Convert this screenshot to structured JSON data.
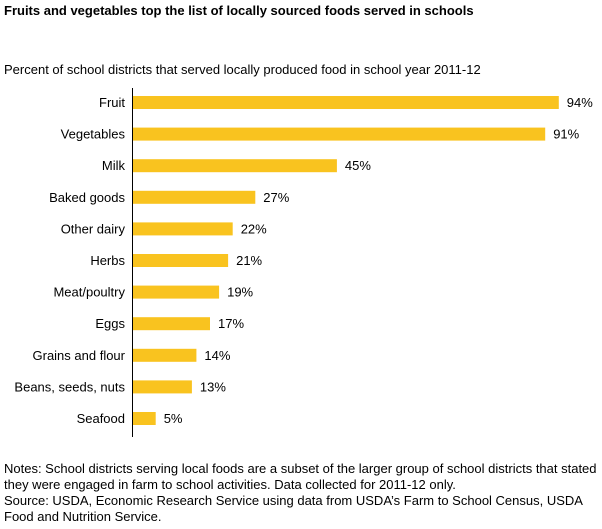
{
  "title": "Fruits and vegetables top the list of locally sourced foods served in schools",
  "subtitle": "Percent of school districts that served locally produced food in school year 2011-12",
  "notes": "Notes: School districts serving local foods are a subset of the larger group of school districts that stated they were engaged in farm to school activities. Data collected for 2011-12 only.",
  "source": "Source: USDA, Economic Research Service using data from USDA’s Farm to School Census, USDA Food and Nutrition Service.",
  "colors": {
    "bar": "#F9C31F",
    "axis": "#000000"
  },
  "chart_data": {
    "type": "bar",
    "orientation": "horizontal",
    "title": "Fruits and vegetables top the list of locally sourced foods served in schools",
    "subtitle": "Percent of school districts that served locally produced food in school year 2011-12",
    "xlabel": "",
    "ylabel": "",
    "xlim": [
      0,
      100
    ],
    "grid": false,
    "legend": "none",
    "categories": [
      "Fruit",
      "Vegetables",
      "Milk",
      "Baked goods",
      "Other dairy",
      "Herbs",
      "Meat/poultry",
      "Eggs",
      "Grains and flour",
      "Beans, seeds, nuts",
      "Seafood"
    ],
    "values": [
      94,
      91,
      45,
      27,
      22,
      21,
      19,
      17,
      14,
      13,
      5
    ],
    "data_labels": [
      "94%",
      "91%",
      "45%",
      "27%",
      "22%",
      "21%",
      "19%",
      "17%",
      "14%",
      "13%",
      "5%"
    ]
  }
}
